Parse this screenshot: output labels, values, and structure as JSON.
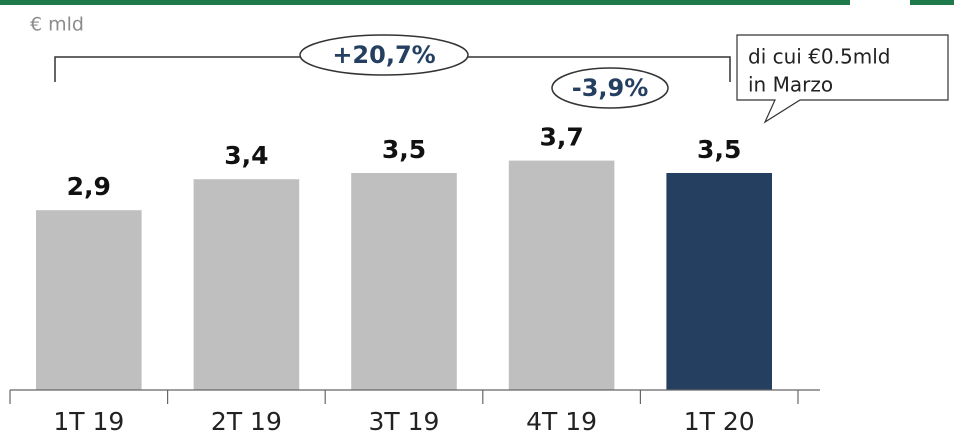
{
  "chart_data": {
    "type": "bar",
    "unit_label": "€ mld",
    "categories": [
      "1T 19",
      "2T 19",
      "3T 19",
      "4T 19",
      "1T 20"
    ],
    "values": [
      2.9,
      3.4,
      3.5,
      3.7,
      3.5
    ],
    "value_labels": [
      "2,9",
      "3,4",
      "3,5",
      "3,7",
      "3,5"
    ],
    "colors": [
      "#bfbfbf",
      "#bfbfbf",
      "#bfbfbf",
      "#bfbfbf",
      "#243f60"
    ],
    "ylim": [
      0,
      4
    ],
    "annotations": [
      "+20,7%",
      "-3,9%"
    ],
    "callout": [
      "di cui €0.5mld",
      "in Marzo"
    ]
  }
}
